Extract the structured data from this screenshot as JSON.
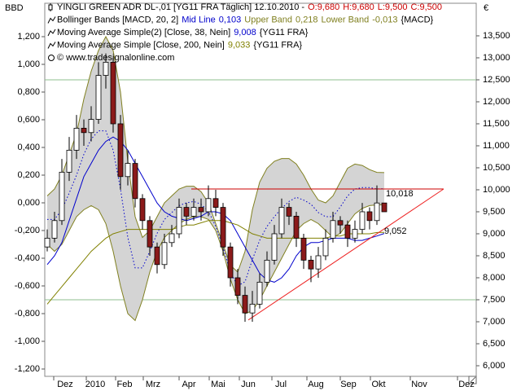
{
  "chart_data": {
    "type": "candlestick",
    "title": "YINGLI GREEN ADR  DL-,01 [YG11 FRA  Täglich] 12.10.2010 -",
    "quote": {
      "values": [
        9.68,
        9.68,
        9.5,
        9.5
      ],
      "value_labels": [
        "O:9,680",
        "H:9,680",
        "L:9,500",
        "C:9,500"
      ],
      "color": "#cc0000"
    },
    "y_label": "BBD",
    "y2_label": "€",
    "copyright": "© www.tradesignalonline.com",
    "categories": [
      "Dez",
      "2010",
      "Feb",
      "Mrz",
      "Apr",
      "Mai",
      "Jun",
      "Jul",
      "Aug",
      "Sep",
      "Okt",
      "Nov",
      "Dez"
    ],
    "ylim": [
      -1.253,
      1.347
    ],
    "yticks": [
      {
        "value": 1.2,
        "label": "1,200"
      },
      {
        "value": 1.0,
        "label": "1,000"
      },
      {
        "value": 0.8,
        "label": "0,800"
      },
      {
        "value": 0.6,
        "label": "0,600"
      },
      {
        "value": 0.4,
        "label": "0,400"
      },
      {
        "value": 0.2,
        "label": "0,200"
      },
      {
        "value": 0,
        "label": "0,000"
      },
      {
        "value": -0.2,
        "label": "-0,200"
      },
      {
        "value": -0.4,
        "label": "-0,400"
      },
      {
        "value": -0.6,
        "label": "-0,600"
      },
      {
        "value": -0.8,
        "label": "-0,800"
      },
      {
        "value": -1.0,
        "label": "-1,000"
      },
      {
        "value": -1.2,
        "label": "-1,200"
      }
    ],
    "y2lim": [
      5.759,
      13.944
    ],
    "y2ticks": [
      {
        "value": 13.5,
        "label": "13,500"
      },
      {
        "value": 13.0,
        "label": "13,000"
      },
      {
        "value": 12.5,
        "label": "12,500"
      },
      {
        "value": 12.0,
        "label": "12,000"
      },
      {
        "value": 11.5,
        "label": "11,500"
      },
      {
        "value": 11.0,
        "label": "11,000"
      },
      {
        "value": 10.5,
        "label": "10,500"
      },
      {
        "value": 10.0,
        "label": "10,000"
      },
      {
        "value": 9.5,
        "label": "9,500"
      },
      {
        "value": 9.0,
        "label": "9,000"
      },
      {
        "value": 8.5,
        "label": "8,500"
      },
      {
        "value": 8.0,
        "label": "8,000"
      },
      {
        "value": 7.5,
        "label": "7,500"
      },
      {
        "value": 7.0,
        "label": "7,000"
      },
      {
        "value": 6.5,
        "label": "6,500"
      },
      {
        "value": 6.0,
        "label": "6,000"
      }
    ],
    "candles": {
      "axis": "y2",
      "up_color": "#ffffff",
      "down_color": "#8b1a1a",
      "open": [
        8.7,
        8.9,
        9.3,
        10.4,
        10.9,
        11.4,
        11.3,
        11.6,
        12.6,
        12.9,
        11.5,
        10.3,
        10.6,
        9.8,
        9.3,
        8.7,
        8.3,
        8.8,
        9.0,
        9.6,
        9.4,
        9.6,
        9.5,
        9.8,
        9.6,
        8.7,
        8.0,
        7.6,
        7.2,
        7.4,
        7.9,
        8.4,
        9.0,
        9.6,
        9.4,
        8.9,
        8.4,
        8.2,
        8.5,
        8.9,
        9.3,
        9.2,
        8.9,
        9.1,
        9.5,
        9.3,
        9.7
      ],
      "high": [
        9.1,
        9.5,
        10.7,
        11.2,
        11.7,
        11.6,
        11.9,
        12.9,
        13.1,
        13.0,
        11.7,
        10.9,
        10.7,
        9.9,
        9.4,
        8.8,
        9.0,
        9.2,
        9.8,
        9.7,
        9.8,
        9.8,
        10.1,
        10.0,
        9.7,
        8.8,
        8.2,
        7.8,
        7.7,
        8.1,
        8.6,
        9.2,
        9.8,
        9.7,
        9.5,
        9.0,
        8.5,
        8.7,
        9.1,
        9.5,
        9.4,
        9.3,
        9.3,
        9.7,
        9.6,
        10.1,
        9.7
      ],
      "low": [
        8.6,
        8.8,
        9.2,
        10.2,
        10.7,
        11.0,
        11.1,
        11.5,
        12.3,
        11.3,
        10.0,
        10.1,
        9.6,
        9.1,
        8.5,
        8.1,
        8.2,
        8.7,
        8.9,
        9.2,
        9.3,
        9.3,
        9.4,
        9.4,
        8.5,
        7.8,
        7.4,
        7.0,
        7.0,
        7.3,
        7.8,
        8.3,
        8.9,
        9.2,
        8.7,
        8.2,
        7.9,
        8.0,
        8.4,
        8.8,
        9.0,
        8.7,
        8.8,
        9.0,
        9.1,
        9.2,
        9.5
      ],
      "close": [
        8.9,
        9.3,
        10.4,
        10.9,
        11.4,
        11.3,
        11.6,
        12.6,
        12.9,
        11.5,
        10.3,
        10.6,
        9.8,
        9.3,
        8.7,
        8.3,
        8.8,
        9.0,
        9.6,
        9.4,
        9.6,
        9.5,
        9.8,
        9.6,
        8.7,
        8.0,
        7.6,
        7.2,
        7.4,
        7.9,
        8.4,
        9.0,
        9.6,
        9.4,
        8.9,
        8.4,
        8.2,
        8.5,
        8.9,
        9.3,
        9.2,
        8.9,
        9.1,
        9.5,
        9.3,
        9.7,
        9.5
      ]
    },
    "indicators": [
      {
        "title": "Bollinger Bands [MACD, 20, 2]",
        "suffix": "{MACD}",
        "fill": "#d4d4d4",
        "series": [
          {
            "name": "Mid Line",
            "color": "#0000cc",
            "axis": "y",
            "dotted": true,
            "legend_value": {
              "value": 0.103,
              "label": "0,103"
            },
            "values": [
              -0.12,
              -0.12,
              -0.05,
              0.07,
              0.2,
              0.35,
              0.46,
              0.52,
              0.52,
              0.38,
              0.1,
              -0.25,
              -0.47,
              -0.47,
              -0.35,
              -0.22,
              -0.12,
              -0.07,
              -0.02,
              0.0,
              0.01,
              -0.01,
              -0.06,
              -0.17,
              -0.32,
              -0.5,
              -0.6,
              -0.57,
              -0.41,
              -0.27,
              -0.17,
              -0.1,
              -0.04,
              0.01,
              0.04,
              0.02,
              -0.01,
              -0.07,
              -0.1,
              -0.1,
              -0.03,
              0.05,
              0.1,
              0.11,
              0.11,
              0.1,
              0.103
            ]
          },
          {
            "name": "Upper Band",
            "color": "#808020",
            "axis": "y",
            "legend_value": {
              "value": 0.218,
              "label": "0,218"
            },
            "values": [
              0.05,
              0.1,
              0.2,
              0.35,
              0.5,
              0.75,
              0.95,
              1.1,
              1.2,
              1.1,
              0.8,
              0.3,
              -0.1,
              -0.25,
              -0.2,
              -0.1,
              0.0,
              0.05,
              0.1,
              0.12,
              0.12,
              0.08,
              0.0,
              -0.15,
              -0.3,
              -0.45,
              -0.5,
              -0.35,
              -0.05,
              0.15,
              0.25,
              0.3,
              0.32,
              0.32,
              0.28,
              0.2,
              0.1,
              0.02,
              0.0,
              0.05,
              0.15,
              0.25,
              0.28,
              0.27,
              0.24,
              0.22,
              0.218
            ]
          },
          {
            "name": "Lower Band",
            "color": "#808020",
            "axis": "y",
            "legend_value": {
              "value": -0.013,
              "label": "-0,013"
            },
            "values": [
              -0.3,
              -0.35,
              -0.3,
              -0.2,
              -0.1,
              -0.05,
              -0.02,
              -0.05,
              -0.15,
              -0.35,
              -0.6,
              -0.8,
              -0.85,
              -0.7,
              -0.5,
              -0.35,
              -0.25,
              -0.2,
              -0.15,
              -0.12,
              -0.1,
              -0.1,
              -0.12,
              -0.2,
              -0.35,
              -0.55,
              -0.7,
              -0.8,
              -0.78,
              -0.7,
              -0.6,
              -0.5,
              -0.4,
              -0.3,
              -0.2,
              -0.15,
              -0.12,
              -0.15,
              -0.2,
              -0.25,
              -0.22,
              -0.15,
              -0.08,
              -0.04,
              -0.02,
              -0.015,
              -0.013
            ]
          }
        ]
      },
      {
        "title": "Moving Average Simple(2) [Close, 38, Nein]",
        "suffix": "{YG11 FRA}",
        "series": [
          {
            "color": "#0000cc",
            "axis": "y2",
            "legend_value": {
              "value": 9.008,
              "label": "9,008"
            },
            "values": [
              8.3,
              8.5,
              8.8,
              9.3,
              9.8,
              10.3,
              10.6,
              10.9,
              11.1,
              11.2,
              11.1,
              10.9,
              10.6,
              10.3,
              10.0,
              9.7,
              9.5,
              9.4,
              9.35,
              9.3,
              9.35,
              9.4,
              9.5,
              9.5,
              9.45,
              9.3,
              9.0,
              8.7,
              8.4,
              8.1,
              7.95,
              7.9,
              8.0,
              8.2,
              8.5,
              8.7,
              8.8,
              8.8,
              8.85,
              8.9,
              8.9,
              8.9,
              8.85,
              8.85,
              8.9,
              8.95,
              9.008
            ]
          }
        ]
      },
      {
        "title": "Moving Average Simple [Close, 200, Nein]",
        "suffix": "{YG11 FRA}",
        "series": [
          {
            "color": "#808000",
            "axis": "y2",
            "legend_value": {
              "value": 9.033,
              "label": "9,033"
            },
            "values": [
              7.4,
              7.6,
              7.8,
              8.0,
              8.2,
              8.4,
              8.6,
              8.75,
              8.9,
              9.0,
              9.05,
              9.1,
              9.1,
              9.1,
              9.1,
              9.1,
              9.1,
              9.1,
              9.15,
              9.2,
              9.2,
              9.25,
              9.3,
              9.3,
              9.3,
              9.25,
              9.2,
              9.1,
              9.0,
              8.95,
              8.9,
              8.9,
              8.9,
              8.9,
              8.9,
              8.9,
              8.9,
              8.9,
              8.9,
              8.95,
              8.95,
              9.0,
              9.0,
              9.0,
              9.0,
              9.03,
              9.033
            ]
          }
        ]
      }
    ],
    "levels": {
      "values": [
        12.5,
        7.5
      ],
      "color": "#8fbf8f"
    },
    "annotations": [
      {
        "label": "10,018",
        "value": 10.018,
        "color": "#cc0000"
      },
      {
        "label": "9,052",
        "value": 9.052,
        "start": 7.04,
        "end": 10.018,
        "color": "#ee2222"
      }
    ]
  }
}
